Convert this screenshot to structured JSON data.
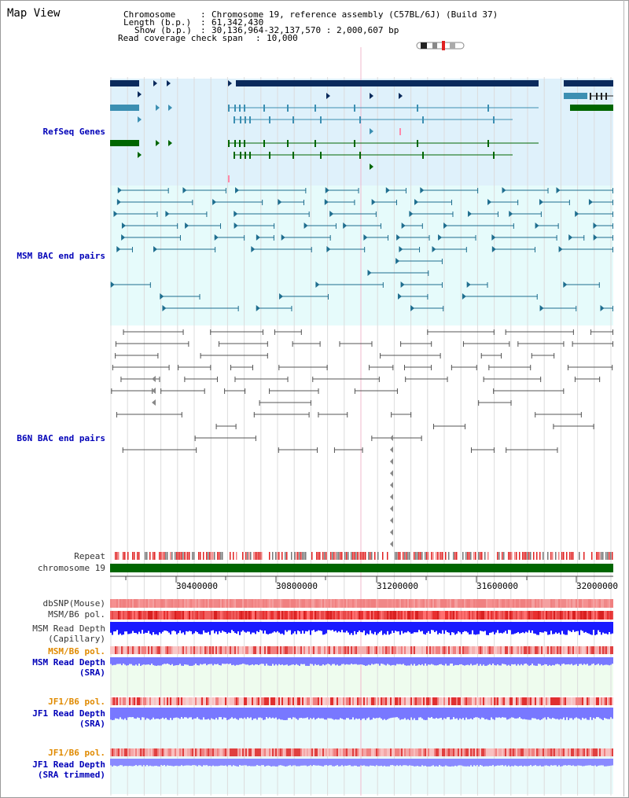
{
  "page_title": "Map View",
  "header": {
    "chromosome_label": "Chromosome",
    "chromosome_value": "Chromosome 19, reference assembly (C57BL/6J) (Build 37)",
    "length_label": "Length (b.p.)",
    "length_value": "61,342,430",
    "show_label": "Show (b.p.)",
    "show_value": "30,136,964-32,137,570 : 2,000,607 bp",
    "read_span_label": "Read coverage check span",
    "read_span_value": "10,000"
  },
  "tracks": {
    "refseq": "RefSeq Genes",
    "msm_bac": "MSM BAC end pairs",
    "b6n_bac": "B6N BAC end pairs",
    "repeat": "Repeat",
    "chromosome": "chromosome 19",
    "dbsnp": "dbSNP(Mouse)",
    "msm_b6_pol_1": "MSM/B6 pol.",
    "msm_read_depth_cap_1": "MSM Read Depth",
    "msm_read_depth_cap_2": "(Capillary)",
    "msm_b6_pol_2": "MSM/B6 pol.",
    "msm_read_depth_sra_1": "MSM Read Depth",
    "msm_read_depth_sra_2": "(SRA)",
    "jf1_b6_pol_1": "JF1/B6 pol.",
    "jf1_read_depth_sra_1": "JF1 Read Depth",
    "jf1_read_depth_sra_2": "(SRA)",
    "jf1_b6_pol_2": "JF1/B6 pol.",
    "jf1_read_depth_trim_1": "JF1 Read Depth",
    "jf1_read_depth_trim_2": "(SRA trimmed)"
  },
  "axis": {
    "ticks": [
      "30400000",
      "30800000",
      "31200000",
      "31600000",
      "32000000"
    ]
  },
  "colors": {
    "refseq_bg": "#dff1fb",
    "msm_bg": "#e6fbfb",
    "gene_dark": "#0a2a5c",
    "gene_mid": "#3c8fb2",
    "gene_green": "#006600",
    "bac_blue": "#1f6e8f",
    "bac_gray": "#555555",
    "chrom_bar": "#006600",
    "depth_blue": "#1a1aff",
    "depth_light": "#7878ff"
  }
}
